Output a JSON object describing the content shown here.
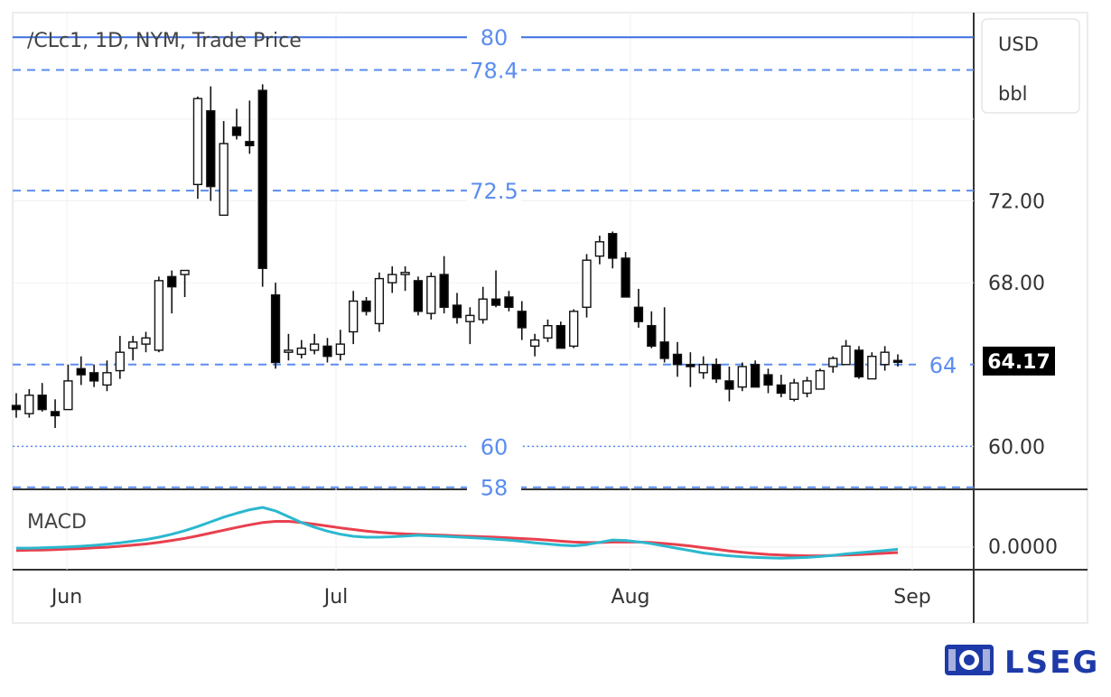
{
  "brand": {
    "name": "LSEG",
    "color": "#1e3aa8",
    "logo_icon": "lion-crest-icon"
  },
  "chart_data": {
    "type": "candlestick",
    "title": "/CLc1, 1D, NYM, Trade Price",
    "units": [
      "USD",
      "bbl"
    ],
    "last_price_label": "64.17",
    "y_axis": {
      "ticks": [
        60,
        68,
        72
      ],
      "tick_labels": [
        "60.00",
        "68.00",
        "72.00"
      ],
      "range": [
        57.9,
        81.2
      ]
    },
    "x_axis": {
      "labels": [
        "Jun",
        "Jul",
        "Aug",
        "Sep"
      ]
    },
    "levels": [
      {
        "value": 80,
        "label": "80",
        "style": "solid",
        "color": "#3b6fe0"
      },
      {
        "value": 78.4,
        "label": "78.4",
        "style": "dashed",
        "color": "#5b8def"
      },
      {
        "value": 72.5,
        "label": "72.5",
        "style": "dashed",
        "color": "#5b8def"
      },
      {
        "value": 64,
        "label": "64",
        "style": "dashed",
        "color": "#5b8def"
      },
      {
        "value": 60,
        "label": "60",
        "style": "dotted",
        "color": "#5b8def"
      },
      {
        "value": 58,
        "label": "58",
        "style": "dashed",
        "color": "#5b8def"
      }
    ],
    "candles": [
      [
        62.0,
        62.6,
        61.4,
        61.8
      ],
      [
        61.6,
        62.8,
        61.4,
        62.5
      ],
      [
        62.5,
        63.1,
        61.7,
        61.8
      ],
      [
        61.7,
        62.3,
        60.9,
        61.5
      ],
      [
        61.8,
        64.0,
        61.8,
        63.2
      ],
      [
        63.8,
        64.4,
        63.0,
        63.5
      ],
      [
        63.6,
        64.0,
        62.9,
        63.2
      ],
      [
        63.0,
        64.2,
        62.7,
        63.6
      ],
      [
        63.7,
        65.4,
        63.3,
        64.6
      ],
      [
        64.8,
        65.4,
        64.2,
        65.1
      ],
      [
        65.0,
        65.6,
        64.6,
        65.3
      ],
      [
        64.7,
        68.3,
        64.6,
        68.1
      ],
      [
        68.3,
        68.6,
        66.5,
        67.8
      ],
      [
        68.4,
        68.6,
        67.3,
        68.6
      ],
      [
        72.8,
        77.1,
        72.1,
        77.0
      ],
      [
        76.4,
        77.6,
        72.0,
        72.7
      ],
      [
        71.3,
        75.9,
        71.3,
        74.8
      ],
      [
        75.6,
        76.5,
        75.0,
        75.2
      ],
      [
        74.9,
        76.9,
        74.3,
        74.7
      ],
      [
        77.4,
        77.7,
        67.8,
        68.7
      ],
      [
        67.4,
        68.0,
        63.8,
        64.1
      ],
      [
        64.6,
        65.5,
        64.2,
        64.7
      ],
      [
        64.5,
        65.2,
        64.3,
        64.8
      ],
      [
        64.7,
        65.5,
        64.5,
        65.0
      ],
      [
        64.9,
        65.3,
        64.1,
        64.4
      ],
      [
        64.5,
        65.7,
        64.2,
        65.0
      ],
      [
        65.6,
        67.6,
        65.0,
        67.1
      ],
      [
        67.1,
        67.3,
        66.4,
        66.6
      ],
      [
        66.0,
        68.5,
        65.6,
        68.2
      ],
      [
        68.0,
        68.8,
        67.5,
        68.4
      ],
      [
        68.4,
        68.8,
        67.6,
        68.5
      ],
      [
        68.1,
        68.3,
        66.4,
        66.6
      ],
      [
        66.5,
        68.5,
        66.2,
        68.3
      ],
      [
        68.4,
        69.3,
        66.5,
        66.8
      ],
      [
        66.9,
        67.5,
        66.0,
        66.3
      ],
      [
        66.1,
        66.8,
        65.0,
        66.4
      ],
      [
        66.2,
        67.8,
        66.0,
        67.2
      ],
      [
        67.2,
        68.6,
        66.8,
        66.9
      ],
      [
        67.3,
        67.6,
        66.6,
        66.8
      ],
      [
        66.6,
        67.1,
        65.2,
        65.8
      ],
      [
        64.9,
        65.5,
        64.4,
        65.2
      ],
      [
        65.3,
        66.2,
        65.1,
        65.9
      ],
      [
        65.9,
        66.1,
        64.8,
        64.8
      ],
      [
        64.9,
        66.7,
        64.8,
        66.6
      ],
      [
        66.8,
        69.4,
        66.3,
        69.1
      ],
      [
        69.3,
        70.3,
        68.9,
        70.0
      ],
      [
        70.4,
        70.5,
        68.7,
        69.2
      ],
      [
        69.2,
        69.5,
        67.3,
        67.3
      ],
      [
        66.8,
        67.7,
        65.8,
        66.1
      ],
      [
        65.9,
        66.6,
        64.8,
        64.9
      ],
      [
        65.1,
        66.8,
        64.1,
        64.3
      ],
      [
        64.5,
        65.1,
        63.4,
        64.0
      ],
      [
        64.0,
        64.6,
        62.9,
        63.9
      ],
      [
        63.6,
        64.4,
        63.3,
        64.0
      ],
      [
        64.0,
        64.3,
        63.1,
        63.3
      ],
      [
        63.2,
        63.9,
        62.2,
        62.8
      ],
      [
        62.9,
        64.1,
        62.7,
        63.9
      ],
      [
        64.0,
        64.2,
        62.9,
        62.9
      ],
      [
        63.5,
        63.8,
        62.6,
        63.0
      ],
      [
        63.0,
        63.5,
        62.4,
        62.6
      ],
      [
        62.3,
        63.3,
        62.2,
        63.1
      ],
      [
        62.6,
        63.4,
        62.4,
        63.2
      ],
      [
        62.8,
        63.8,
        62.8,
        63.7
      ],
      [
        63.9,
        64.4,
        63.6,
        64.3
      ],
      [
        64.0,
        65.2,
        64.0,
        64.9
      ],
      [
        64.7,
        64.9,
        63.3,
        63.4
      ],
      [
        63.3,
        64.6,
        63.3,
        64.4
      ],
      [
        64.0,
        64.9,
        63.7,
        64.6
      ],
      [
        64.2,
        64.5,
        63.9,
        64.17
      ]
    ],
    "macd": {
      "label": "MACD",
      "tick_label": "0.0000",
      "macd_line": [
        -0.05,
        -0.05,
        -0.04,
        -0.02,
        0.0,
        0.03,
        0.07,
        0.12,
        0.18,
        0.25,
        0.32,
        0.42,
        0.55,
        0.7,
        0.88,
        1.08,
        1.28,
        1.45,
        1.6,
        1.7,
        1.55,
        1.3,
        1.05,
        0.85,
        0.68,
        0.55,
        0.46,
        0.42,
        0.42,
        0.44,
        0.47,
        0.5,
        0.48,
        0.46,
        0.43,
        0.4,
        0.37,
        0.33,
        0.29,
        0.24,
        0.18,
        0.13,
        0.08,
        0.05,
        0.1,
        0.2,
        0.3,
        0.28,
        0.22,
        0.14,
        0.04,
        -0.06,
        -0.16,
        -0.26,
        -0.33,
        -0.38,
        -0.42,
        -0.45,
        -0.47,
        -0.48,
        -0.47,
        -0.45,
        -0.41,
        -0.36,
        -0.3,
        -0.25,
        -0.2,
        -0.15,
        -0.1
      ],
      "signal_line": [
        -0.15,
        -0.14,
        -0.13,
        -0.11,
        -0.09,
        -0.07,
        -0.04,
        -0.01,
        0.03,
        0.08,
        0.13,
        0.2,
        0.28,
        0.37,
        0.48,
        0.6,
        0.72,
        0.84,
        0.95,
        1.05,
        1.1,
        1.1,
        1.05,
        0.98,
        0.9,
        0.82,
        0.75,
        0.68,
        0.63,
        0.59,
        0.56,
        0.54,
        0.52,
        0.5,
        0.48,
        0.46,
        0.44,
        0.42,
        0.39,
        0.36,
        0.33,
        0.29,
        0.25,
        0.21,
        0.19,
        0.19,
        0.21,
        0.22,
        0.21,
        0.19,
        0.15,
        0.1,
        0.04,
        -0.03,
        -0.1,
        -0.17,
        -0.23,
        -0.28,
        -0.32,
        -0.35,
        -0.37,
        -0.38,
        -0.38,
        -0.37,
        -0.35,
        -0.33,
        -0.3,
        -0.27,
        -0.24
      ],
      "range": [
        -0.9,
        2.4
      ],
      "colors": {
        "macd_line": "#2bb8cf",
        "signal_line": "#e8404e"
      }
    },
    "colors": {
      "up_candle_fill": "#ffffff",
      "down_candle_fill": "#000000",
      "candle_stroke": "#111111",
      "last_price_bg": "#000000",
      "last_price_text": "#ffffff"
    }
  }
}
